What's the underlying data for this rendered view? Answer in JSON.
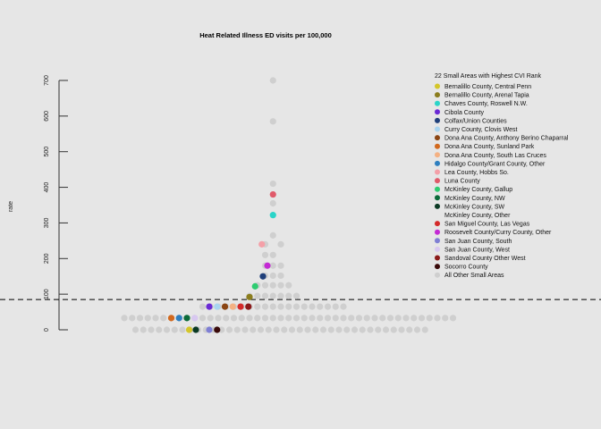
{
  "chart_data": {
    "type": "scatter",
    "title": "Heat Related Illness ED visits per 100,000",
    "xlabel": "",
    "ylabel": "rate",
    "ylim": [
      -20,
      720
    ],
    "yticks": [
      0,
      100,
      200,
      300,
      400,
      500,
      600,
      700
    ],
    "reference_line": 85,
    "legend": {
      "title": "22 Small Areas with Highest CVI Rank",
      "placement": "right",
      "entries": [
        {
          "name": "Bernalillo County, Central Penn",
          "color": "#d4c62a"
        },
        {
          "name": "Bernalillo County, Arenal Tapia",
          "color": "#8b7d1e"
        },
        {
          "name": "Chaves County, Roswell N.W.",
          "color": "#2ad4c8"
        },
        {
          "name": "Cibola County",
          "color": "#6a2ad4"
        },
        {
          "name": "Colfax/Union Counties",
          "color": "#1f3f7a"
        },
        {
          "name": "Curry County, Clovis West",
          "color": "#a9d4f0"
        },
        {
          "name": "Dona Ana County, Anthony Berino Chaparral",
          "color": "#8b4513"
        },
        {
          "name": "Dona Ana County, Sunland Park",
          "color": "#d2691e"
        },
        {
          "name": "Dona Ana County, South Las Cruces",
          "color": "#f4b183"
        },
        {
          "name": "Hidalgo County/Grant County, Other",
          "color": "#2f7fbf"
        },
        {
          "name": "Lea County, Hobbs So.",
          "color": "#f4a0a8"
        },
        {
          "name": "Luna County",
          "color": "#e05a6a"
        },
        {
          "name": "McKinley County, Gallup",
          "color": "#2ecc71"
        },
        {
          "name": "McKinley County, NW",
          "color": "#0b6b3a"
        },
        {
          "name": "McKinley County, SW",
          "color": "#0b3a24"
        },
        {
          "name": "McKinley County, Other",
          "color": "#e6e6e6"
        },
        {
          "name": "San Miguel County, Las Vegas",
          "color": "#d42a2a"
        },
        {
          "name": "Roosevelt County/Curry County, Other",
          "color": "#c42ad4"
        },
        {
          "name": "San Juan County, South",
          "color": "#7f7fd4"
        },
        {
          "name": "San Juan County, West",
          "color": "#d8c8f0"
        },
        {
          "name": "Sandoval County Other West",
          "color": "#8b1a1a"
        },
        {
          "name": "Socorro County",
          "color": "#3a0a0a"
        },
        {
          "name": "All Other Small Areas",
          "color": "#cfcfcf"
        }
      ]
    },
    "grey_points": [
      {
        "x": 0.38,
        "y": 0
      },
      {
        "x": 0.45,
        "y": 0
      },
      {
        "x": 0.52,
        "y": 0
      },
      {
        "x": 0.59,
        "y": 0
      },
      {
        "x": 0.66,
        "y": 0
      },
      {
        "x": 0.73,
        "y": 0
      },
      {
        "x": 0.8,
        "y": 0
      },
      {
        "x": 0.87,
        "y": 0
      },
      {
        "x": 0.94,
        "y": 0
      },
      {
        "x": 1.01,
        "y": 0
      },
      {
        "x": 1.08,
        "y": 0
      },
      {
        "x": 1.15,
        "y": 0
      },
      {
        "x": 1.22,
        "y": 0
      },
      {
        "x": 1.29,
        "y": 0
      },
      {
        "x": 1.36,
        "y": 0
      },
      {
        "x": 1.43,
        "y": 0
      },
      {
        "x": 1.5,
        "y": 0
      },
      {
        "x": 1.57,
        "y": 0
      },
      {
        "x": 1.64,
        "y": 0
      },
      {
        "x": 1.71,
        "y": 0
      },
      {
        "x": 1.78,
        "y": 0
      },
      {
        "x": 1.85,
        "y": 0
      },
      {
        "x": 1.92,
        "y": 0
      },
      {
        "x": 1.99,
        "y": 0
      },
      {
        "x": 2.06,
        "y": 0
      },
      {
        "x": 2.13,
        "y": 0
      },
      {
        "x": 2.2,
        "y": 0
      },
      {
        "x": 2.27,
        "y": 0
      },
      {
        "x": 2.34,
        "y": 0
      },
      {
        "x": 2.41,
        "y": 0
      },
      {
        "x": 2.48,
        "y": 0
      },
      {
        "x": 2.55,
        "y": 0
      },
      {
        "x": 2.62,
        "y": 0
      },
      {
        "x": 2.69,
        "y": 0
      },
      {
        "x": 2.76,
        "y": 0
      },
      {
        "x": 2.83,
        "y": 0
      },
      {
        "x": 2.9,
        "y": 0
      },
      {
        "x": 2.97,
        "y": 0
      },
      {
        "x": 0.28,
        "y": 33
      },
      {
        "x": 0.35,
        "y": 33
      },
      {
        "x": 0.42,
        "y": 33
      },
      {
        "x": 0.49,
        "y": 33
      },
      {
        "x": 0.56,
        "y": 33
      },
      {
        "x": 0.63,
        "y": 33
      },
      {
        "x": 0.7,
        "y": 33
      },
      {
        "x": 0.77,
        "y": 33
      },
      {
        "x": 0.84,
        "y": 33
      },
      {
        "x": 0.91,
        "y": 33
      },
      {
        "x": 0.98,
        "y": 33
      },
      {
        "x": 1.05,
        "y": 33
      },
      {
        "x": 1.12,
        "y": 33
      },
      {
        "x": 1.19,
        "y": 33
      },
      {
        "x": 1.26,
        "y": 33
      },
      {
        "x": 1.33,
        "y": 33
      },
      {
        "x": 1.4,
        "y": 33
      },
      {
        "x": 1.47,
        "y": 33
      },
      {
        "x": 1.54,
        "y": 33
      },
      {
        "x": 1.61,
        "y": 33
      },
      {
        "x": 1.68,
        "y": 33
      },
      {
        "x": 1.75,
        "y": 33
      },
      {
        "x": 1.82,
        "y": 33
      },
      {
        "x": 1.89,
        "y": 33
      },
      {
        "x": 1.96,
        "y": 33
      },
      {
        "x": 2.03,
        "y": 33
      },
      {
        "x": 2.1,
        "y": 33
      },
      {
        "x": 2.17,
        "y": 33
      },
      {
        "x": 2.24,
        "y": 33
      },
      {
        "x": 2.31,
        "y": 33
      },
      {
        "x": 2.38,
        "y": 33
      },
      {
        "x": 2.45,
        "y": 33
      },
      {
        "x": 2.52,
        "y": 33
      },
      {
        "x": 2.59,
        "y": 33
      },
      {
        "x": 2.66,
        "y": 33
      },
      {
        "x": 2.73,
        "y": 33
      },
      {
        "x": 2.8,
        "y": 33
      },
      {
        "x": 2.87,
        "y": 33
      },
      {
        "x": 2.94,
        "y": 33
      },
      {
        "x": 3.01,
        "y": 33
      },
      {
        "x": 3.08,
        "y": 33
      },
      {
        "x": 3.15,
        "y": 33
      },
      {
        "x": 3.22,
        "y": 33
      },
      {
        "x": 0.98,
        "y": 65
      },
      {
        "x": 1.05,
        "y": 65
      },
      {
        "x": 1.12,
        "y": 65
      },
      {
        "x": 1.19,
        "y": 65
      },
      {
        "x": 1.26,
        "y": 65
      },
      {
        "x": 1.33,
        "y": 65
      },
      {
        "x": 1.4,
        "y": 65
      },
      {
        "x": 1.47,
        "y": 65
      },
      {
        "x": 1.54,
        "y": 65
      },
      {
        "x": 1.61,
        "y": 65
      },
      {
        "x": 1.68,
        "y": 65
      },
      {
        "x": 1.75,
        "y": 65
      },
      {
        "x": 1.82,
        "y": 65
      },
      {
        "x": 1.89,
        "y": 65
      },
      {
        "x": 1.96,
        "y": 65
      },
      {
        "x": 2.03,
        "y": 65
      },
      {
        "x": 2.1,
        "y": 65
      },
      {
        "x": 2.17,
        "y": 65
      },
      {
        "x": 2.24,
        "y": 65
      },
      {
        "x": 1.4,
        "y": 95
      },
      {
        "x": 1.47,
        "y": 95
      },
      {
        "x": 1.54,
        "y": 95
      },
      {
        "x": 1.61,
        "y": 95
      },
      {
        "x": 1.68,
        "y": 95
      },
      {
        "x": 1.75,
        "y": 95
      },
      {
        "x": 1.82,
        "y": 95
      },
      {
        "x": 1.47,
        "y": 125
      },
      {
        "x": 1.54,
        "y": 125
      },
      {
        "x": 1.61,
        "y": 125
      },
      {
        "x": 1.68,
        "y": 125
      },
      {
        "x": 1.75,
        "y": 125
      },
      {
        "x": 1.54,
        "y": 152
      },
      {
        "x": 1.61,
        "y": 152
      },
      {
        "x": 1.68,
        "y": 152
      },
      {
        "x": 1.54,
        "y": 180
      },
      {
        "x": 1.61,
        "y": 180
      },
      {
        "x": 1.68,
        "y": 180
      },
      {
        "x": 1.54,
        "y": 210
      },
      {
        "x": 1.61,
        "y": 210
      },
      {
        "x": 1.54,
        "y": 240
      },
      {
        "x": 1.68,
        "y": 240
      },
      {
        "x": 1.61,
        "y": 265
      },
      {
        "x": 1.61,
        "y": 355
      },
      {
        "x": 1.61,
        "y": 410
      },
      {
        "x": 1.61,
        "y": 585
      },
      {
        "x": 1.61,
        "y": 700
      }
    ],
    "colored_points": [
      {
        "name": "Bernalillo County, Central Penn",
        "x": 0.86,
        "y": 0
      },
      {
        "name": "Bernalillo County, Arenal Tapia",
        "x": 1.4,
        "y": 92
      },
      {
        "name": "Chaves County, Roswell N.W.",
        "x": 1.61,
        "y": 322
      },
      {
        "name": "Cibola County",
        "x": 1.04,
        "y": 65
      },
      {
        "name": "Colfax/Union Counties",
        "x": 1.52,
        "y": 150
      },
      {
        "name": "Curry County, Clovis West",
        "x": 1.11,
        "y": 65
      },
      {
        "name": "Dona Ana County, Anthony Berino Chaparral",
        "x": 1.18,
        "y": 65
      },
      {
        "name": "Dona Ana County, Sunland Park",
        "x": 0.7,
        "y": 33
      },
      {
        "name": "Dona Ana County, South Las Cruces",
        "x": 1.25,
        "y": 65
      },
      {
        "name": "Hidalgo County/Grant County, Other",
        "x": 0.77,
        "y": 33
      },
      {
        "name": "Lea County, Hobbs So.",
        "x": 1.51,
        "y": 240
      },
      {
        "name": "Luna County",
        "x": 1.61,
        "y": 380
      },
      {
        "name": "McKinley County, Gallup",
        "x": 1.45,
        "y": 122
      },
      {
        "name": "McKinley County, NW",
        "x": 0.84,
        "y": 33
      },
      {
        "name": "McKinley County, SW",
        "x": 0.92,
        "y": 0
      },
      {
        "name": "San Miguel County, Las Vegas",
        "x": 1.32,
        "y": 65
      },
      {
        "name": "Roosevelt County/Curry County, Other",
        "x": 1.56,
        "y": 180
      },
      {
        "name": "San Juan County, South",
        "x": 1.04,
        "y": 0
      },
      {
        "name": "San Juan County, West",
        "x": 0.91,
        "y": 33
      },
      {
        "name": "Sandoval County Other West",
        "x": 1.39,
        "y": 65
      },
      {
        "name": "Socorro County",
        "x": 1.11,
        "y": 0
      }
    ]
  }
}
